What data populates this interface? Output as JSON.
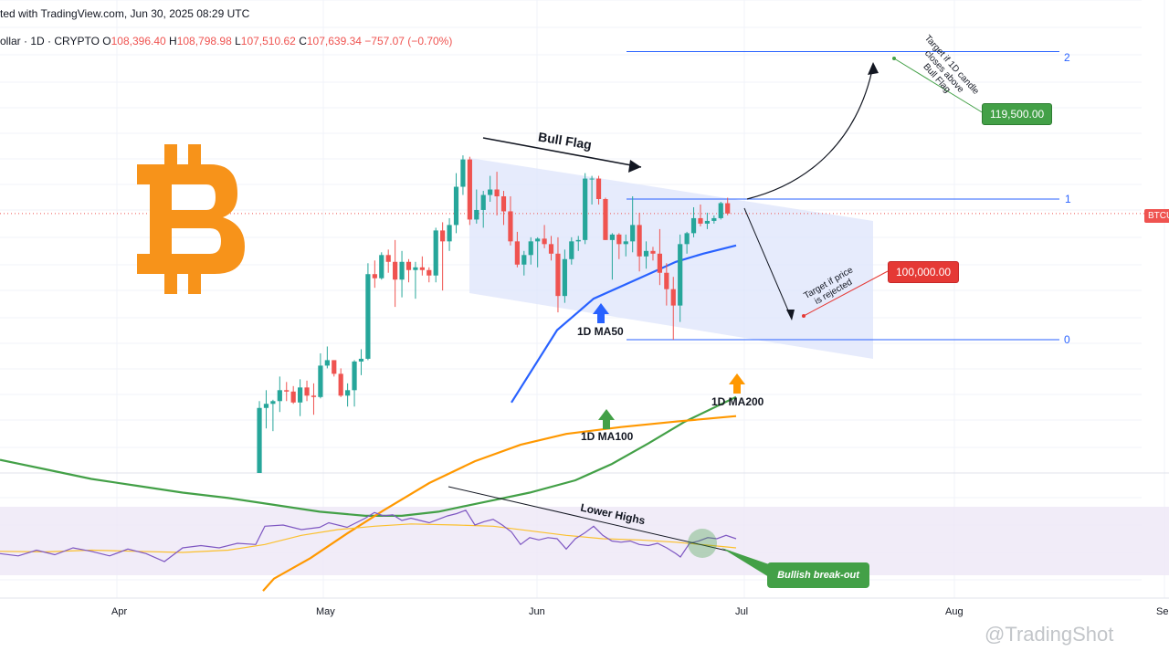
{
  "header": {
    "line1": "ted with TradingView.com, Jun 30, 2025 08:29 UTC",
    "symbol": "ollar · 1D · CRYPTO",
    "o_label": "O",
    "o_value": "108,396.40",
    "h_label": "H",
    "h_value": "108,798.98",
    "l_label": "L",
    "l_value": "107,510.62",
    "c_label": "C",
    "c_value": "107,639.34",
    "change": "−757.07 (−0.70%)"
  },
  "price_tag": "BTCU",
  "fib_levels": [
    {
      "label": "2",
      "value": 119500
    },
    {
      "label": "1",
      "value": 108700
    },
    {
      "label": "0",
      "value": 98400
    }
  ],
  "annotations": {
    "bull_flag": "Bull Flag",
    "ma50": "1D MA50",
    "ma100": "1D MA100",
    "ma200": "1D MA200",
    "lower_highs": "Lower Highs",
    "bullish_breakout": "Bullish break-out",
    "target_up_lines": [
      "Target if 1D candle",
      "closes above",
      "Bull Flag"
    ],
    "target_up_price": "119,500.00",
    "target_down_lines": [
      "Target if price",
      "is rejected"
    ],
    "target_down_price": "100,000.00"
  },
  "watermark": "@TradingShot",
  "colors": {
    "up": "#26a69a",
    "down": "#ef5350",
    "ma50": "#2962ff",
    "ma100": "#43a047",
    "ma200": "#ff9800",
    "rsi": "#7e57c2",
    "rsi_ma": "#fbc02d",
    "flag": "#dde4fb",
    "btc": "#f7931a"
  },
  "chart_data": [
    {
      "type": "candlestick",
      "title": "",
      "timeframe": "1D",
      "x_ticks": [
        "Apr",
        "May",
        "Jun",
        "Jul",
        "Aug",
        "Se"
      ],
      "candles": [
        {
          "date": "2025-04-22",
          "o": 87500,
          "h": 93900,
          "l": 87300,
          "c": 93400
        },
        {
          "date": "2025-04-23",
          "o": 93400,
          "h": 94700,
          "l": 91900,
          "c": 93700
        },
        {
          "date": "2025-04-24",
          "o": 93700,
          "h": 94000,
          "l": 91700,
          "c": 93900
        },
        {
          "date": "2025-04-25",
          "o": 93900,
          "h": 95700,
          "l": 93100,
          "c": 94700
        },
        {
          "date": "2025-04-26",
          "o": 94700,
          "h": 95300,
          "l": 93900,
          "c": 94600
        },
        {
          "date": "2025-04-27",
          "o": 94600,
          "h": 95000,
          "l": 93700,
          "c": 93800
        },
        {
          "date": "2025-04-28",
          "o": 93800,
          "h": 95500,
          "l": 92800,
          "c": 94900
        },
        {
          "date": "2025-04-29",
          "o": 94900,
          "h": 95400,
          "l": 93900,
          "c": 94300
        },
        {
          "date": "2025-04-30",
          "o": 94300,
          "h": 95200,
          "l": 92900,
          "c": 94200
        },
        {
          "date": "2025-05-01",
          "o": 94200,
          "h": 97400,
          "l": 94100,
          "c": 96500
        },
        {
          "date": "2025-05-02",
          "o": 96500,
          "h": 97900,
          "l": 96300,
          "c": 96900
        },
        {
          "date": "2025-05-03",
          "o": 96900,
          "h": 96900,
          "l": 95700,
          "c": 95900
        },
        {
          "date": "2025-05-04",
          "o": 95900,
          "h": 96300,
          "l": 94200,
          "c": 94300
        },
        {
          "date": "2025-05-05",
          "o": 94300,
          "h": 95200,
          "l": 93500,
          "c": 94700
        },
        {
          "date": "2025-05-06",
          "o": 94700,
          "h": 96900,
          "l": 93500,
          "c": 96800
        },
        {
          "date": "2025-05-07",
          "o": 96800,
          "h": 97700,
          "l": 95800,
          "c": 97000
        },
        {
          "date": "2025-05-08",
          "o": 97000,
          "h": 104000,
          "l": 96900,
          "c": 103200
        },
        {
          "date": "2025-05-09",
          "o": 103200,
          "h": 104200,
          "l": 102200,
          "c": 102900
        },
        {
          "date": "2025-05-10",
          "o": 102900,
          "h": 104800,
          "l": 102800,
          "c": 104600
        },
        {
          "date": "2025-05-11",
          "o": 104600,
          "h": 105000,
          "l": 103300,
          "c": 104100
        },
        {
          "date": "2025-05-12",
          "o": 104100,
          "h": 105700,
          "l": 100800,
          "c": 102800
        },
        {
          "date": "2025-05-13",
          "o": 102800,
          "h": 104900,
          "l": 101500,
          "c": 104100
        },
        {
          "date": "2025-05-14",
          "o": 104100,
          "h": 104300,
          "l": 102600,
          "c": 103500
        },
        {
          "date": "2025-05-15",
          "o": 103500,
          "h": 104100,
          "l": 101400,
          "c": 103700
        },
        {
          "date": "2025-05-16",
          "o": 103700,
          "h": 104500,
          "l": 103100,
          "c": 103500
        },
        {
          "date": "2025-05-17",
          "o": 103500,
          "h": 103700,
          "l": 102600,
          "c": 103100
        },
        {
          "date": "2025-05-18",
          "o": 103100,
          "h": 106600,
          "l": 102600,
          "c": 106400
        },
        {
          "date": "2025-05-19",
          "o": 106400,
          "h": 107000,
          "l": 102000,
          "c": 105600
        },
        {
          "date": "2025-05-20",
          "o": 105600,
          "h": 107300,
          "l": 104900,
          "c": 106800
        },
        {
          "date": "2025-05-21",
          "o": 106800,
          "h": 110600,
          "l": 106200,
          "c": 109600
        },
        {
          "date": "2025-05-22",
          "o": 109600,
          "h": 111900,
          "l": 109000,
          "c": 111600
        },
        {
          "date": "2025-05-23",
          "o": 111600,
          "h": 111800,
          "l": 106800,
          "c": 107200
        },
        {
          "date": "2025-05-24",
          "o": 107200,
          "h": 109400,
          "l": 106900,
          "c": 107900
        },
        {
          "date": "2025-05-25",
          "o": 107900,
          "h": 109300,
          "l": 106600,
          "c": 109000
        },
        {
          "date": "2025-05-26",
          "o": 109000,
          "h": 110400,
          "l": 108500,
          "c": 109400
        },
        {
          "date": "2025-05-27",
          "o": 109400,
          "h": 110700,
          "l": 107500,
          "c": 108900
        },
        {
          "date": "2025-05-28",
          "o": 108900,
          "h": 109300,
          "l": 106800,
          "c": 107800
        },
        {
          "date": "2025-05-29",
          "o": 107800,
          "h": 108900,
          "l": 105300,
          "c": 105600
        },
        {
          "date": "2025-05-30",
          "o": 105600,
          "h": 106300,
          "l": 103700,
          "c": 103900
        },
        {
          "date": "2025-05-31",
          "o": 103900,
          "h": 104900,
          "l": 103100,
          "c": 104600
        },
        {
          "date": "2025-06-01",
          "o": 104600,
          "h": 105900,
          "l": 103900,
          "c": 105600
        },
        {
          "date": "2025-06-02",
          "o": 105600,
          "h": 105900,
          "l": 103700,
          "c": 105800
        },
        {
          "date": "2025-06-03",
          "o": 105800,
          "h": 106800,
          "l": 105100,
          "c": 105400
        },
        {
          "date": "2025-06-04",
          "o": 105400,
          "h": 106000,
          "l": 104200,
          "c": 104700
        },
        {
          "date": "2025-06-05",
          "o": 104700,
          "h": 105900,
          "l": 100400,
          "c": 101600
        },
        {
          "date": "2025-06-06",
          "o": 101600,
          "h": 105000,
          "l": 101100,
          "c": 104300
        },
        {
          "date": "2025-06-07",
          "o": 104300,
          "h": 105900,
          "l": 103900,
          "c": 105600
        },
        {
          "date": "2025-06-08",
          "o": 105600,
          "h": 106000,
          "l": 104900,
          "c": 105700
        },
        {
          "date": "2025-06-09",
          "o": 105700,
          "h": 110600,
          "l": 105400,
          "c": 110200
        },
        {
          "date": "2025-06-10",
          "o": 110200,
          "h": 110400,
          "l": 108300,
          "c": 110200
        },
        {
          "date": "2025-06-11",
          "o": 110200,
          "h": 110400,
          "l": 108300,
          "c": 108700
        },
        {
          "date": "2025-06-12",
          "o": 108700,
          "h": 108800,
          "l": 105700,
          "c": 105700
        },
        {
          "date": "2025-06-13",
          "o": 105700,
          "h": 106200,
          "l": 102800,
          "c": 106100
        },
        {
          "date": "2025-06-14",
          "o": 106100,
          "h": 106200,
          "l": 104300,
          "c": 105400
        },
        {
          "date": "2025-06-15",
          "o": 105400,
          "h": 106100,
          "l": 104500,
          "c": 105600
        },
        {
          "date": "2025-06-16",
          "o": 105600,
          "h": 108900,
          "l": 104800,
          "c": 106800
        },
        {
          "date": "2025-06-17",
          "o": 106800,
          "h": 107700,
          "l": 103400,
          "c": 104500
        },
        {
          "date": "2025-06-18",
          "o": 104500,
          "h": 105600,
          "l": 103600,
          "c": 104900
        },
        {
          "date": "2025-06-19",
          "o": 104900,
          "h": 105200,
          "l": 104200,
          "c": 104700
        },
        {
          "date": "2025-06-20",
          "o": 104700,
          "h": 106500,
          "l": 102400,
          "c": 103300
        },
        {
          "date": "2025-06-21",
          "o": 103300,
          "h": 104000,
          "l": 100900,
          "c": 102100
        },
        {
          "date": "2025-06-22",
          "o": 102100,
          "h": 103000,
          "l": 98400,
          "c": 100900
        },
        {
          "date": "2025-06-23",
          "o": 100900,
          "h": 106100,
          "l": 99700,
          "c": 105400
        },
        {
          "date": "2025-06-24",
          "o": 105400,
          "h": 106300,
          "l": 104700,
          "c": 106200
        },
        {
          "date": "2025-06-25",
          "o": 106200,
          "h": 108100,
          "l": 105900,
          "c": 107300
        },
        {
          "date": "2025-06-26",
          "o": 107300,
          "h": 108300,
          "l": 106700,
          "c": 106900
        },
        {
          "date": "2025-06-27",
          "o": 106900,
          "h": 107700,
          "l": 106500,
          "c": 107100
        },
        {
          "date": "2025-06-28",
          "o": 107100,
          "h": 107500,
          "l": 106900,
          "c": 107300
        },
        {
          "date": "2025-06-29",
          "o": 107300,
          "h": 108500,
          "l": 107200,
          "c": 108400
        },
        {
          "date": "2025-06-30",
          "o": 108396,
          "h": 108799,
          "l": 107511,
          "c": 107639
        }
      ],
      "ma50": [
        [
          0,
          86000
        ],
        [
          30,
          84500
        ],
        [
          60,
          83200
        ],
        [
          100,
          81800
        ],
        [
          135,
          80800
        ],
        [
          200,
          80000
        ],
        [
          280,
          79600
        ],
        [
          350,
          80200
        ],
        [
          420,
          82600
        ],
        [
          470,
          85100
        ],
        [
          510,
          88200
        ],
        [
          560,
          93800
        ],
        [
          610,
          99100
        ],
        [
          650,
          101400
        ],
        [
          700,
          102900
        ],
        [
          740,
          104100
        ],
        [
          770,
          104700
        ],
        [
          806,
          105300
        ]
      ],
      "ma100": [
        [
          0,
          89600
        ],
        [
          50,
          88900
        ],
        [
          100,
          88200
        ],
        [
          150,
          87700
        ],
        [
          200,
          87200
        ],
        [
          250,
          86800
        ],
        [
          300,
          86300
        ],
        [
          350,
          85800
        ],
        [
          400,
          85500
        ],
        [
          440,
          85500
        ],
        [
          480,
          85800
        ],
        [
          530,
          86500
        ],
        [
          580,
          87200
        ],
        [
          630,
          88100
        ],
        [
          670,
          89300
        ],
        [
          710,
          90800
        ],
        [
          750,
          92400
        ],
        [
          806,
          94200
        ]
      ],
      "ma200": [
        [
          288,
          80000
        ],
        [
          300,
          80900
        ],
        [
          340,
          82400
        ],
        [
          380,
          84200
        ],
        [
          420,
          85900
        ],
        [
          470,
          87900
        ],
        [
          520,
          89500
        ],
        [
          570,
          90700
        ],
        [
          620,
          91500
        ],
        [
          680,
          92000
        ],
        [
          740,
          92400
        ],
        [
          806,
          92800
        ]
      ],
      "rsi": [
        [
          0,
          39
        ],
        [
          20,
          37
        ],
        [
          40,
          42
        ],
        [
          60,
          38
        ],
        [
          80,
          44
        ],
        [
          100,
          41
        ],
        [
          120,
          37
        ],
        [
          140,
          43
        ],
        [
          160,
          39
        ],
        [
          180,
          32
        ],
        [
          200,
          44
        ],
        [
          220,
          46
        ],
        [
          240,
          44
        ],
        [
          260,
          48
        ],
        [
          280,
          47
        ],
        [
          290,
          63
        ],
        [
          310,
          64
        ],
        [
          330,
          60
        ],
        [
          350,
          62
        ],
        [
          360,
          66
        ],
        [
          380,
          62
        ],
        [
          400,
          70
        ],
        [
          410,
          75
        ],
        [
          420,
          72
        ],
        [
          430,
          73
        ],
        [
          440,
          68
        ],
        [
          450,
          70
        ],
        [
          460,
          68
        ],
        [
          470,
          66
        ],
        [
          490,
          72
        ],
        [
          500,
          74
        ],
        [
          510,
          77
        ],
        [
          520,
          64
        ],
        [
          530,
          67
        ],
        [
          540,
          69
        ],
        [
          550,
          64
        ],
        [
          560,
          58
        ],
        [
          570,
          47
        ],
        [
          580,
          53
        ],
        [
          590,
          51
        ],
        [
          600,
          53
        ],
        [
          610,
          52
        ],
        [
          620,
          43
        ],
        [
          630,
          52
        ],
        [
          640,
          57
        ],
        [
          650,
          63
        ],
        [
          660,
          55
        ],
        [
          670,
          50
        ],
        [
          680,
          49
        ],
        [
          690,
          50
        ],
        [
          700,
          47
        ],
        [
          710,
          46
        ],
        [
          720,
          48
        ],
        [
          730,
          44
        ],
        [
          740,
          39
        ],
        [
          745,
          36
        ],
        [
          755,
          48
        ],
        [
          765,
          50
        ],
        [
          775,
          53
        ],
        [
          785,
          52
        ],
        [
          795,
          55
        ],
        [
          806,
          52
        ]
      ],
      "rsi_ma": [
        [
          0,
          41
        ],
        [
          50,
          40.5
        ],
        [
          100,
          42
        ],
        [
          150,
          41
        ],
        [
          200,
          40
        ],
        [
          250,
          42
        ],
        [
          290,
          47
        ],
        [
          330,
          55
        ],
        [
          370,
          60
        ],
        [
          410,
          63
        ],
        [
          450,
          65
        ],
        [
          500,
          64
        ],
        [
          540,
          63
        ],
        [
          580,
          59
        ],
        [
          620,
          55
        ],
        [
          660,
          52
        ],
        [
          700,
          51
        ],
        [
          740,
          49
        ],
        [
          780,
          46
        ],
        [
          806,
          44
        ]
      ]
    }
  ]
}
